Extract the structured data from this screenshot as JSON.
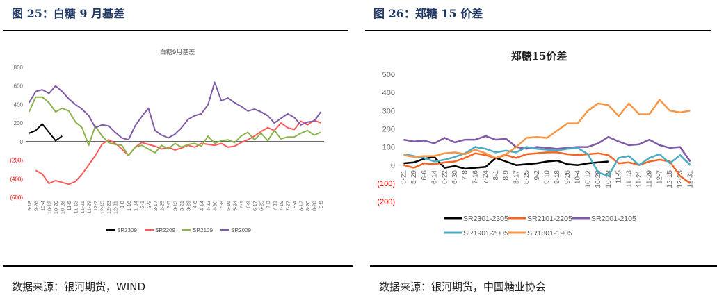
{
  "left": {
    "figure_title": "图 25：白糖 9 月基差",
    "source": "数据来源：银河期货，WIND"
  },
  "right": {
    "figure_title": "图 26：郑糖 15 价差",
    "source": "数据来源：银河期货，中国糖业协会"
  },
  "colors": {
    "title_blue": "#1f3864",
    "negative_label": "#ff0000"
  },
  "chart_data": [
    {
      "type": "line",
      "title": "白糖9月基差",
      "xlabel": "",
      "ylabel": "",
      "ylim": [
        -600,
        800
      ],
      "yticks": [
        800,
        600,
        400,
        200,
        0,
        -200,
        -400,
        -600
      ],
      "ytick_labels": [
        "800",
        "600",
        "400",
        "200",
        "0",
        "(200)",
        "(400)",
        "(600)"
      ],
      "legend_position": "bottom",
      "categories": [
        "9-18",
        "9-26",
        "10-4",
        "10-12",
        "10-20",
        "10-28",
        "11-5",
        "11-13",
        "11-21",
        "11-29",
        "12-7",
        "12-15",
        "12-23",
        "12-31",
        "1-8",
        "1-16",
        "1-24",
        "2-1",
        "2-9",
        "2-17",
        "2-25",
        "3-5",
        "3-13",
        "3-21",
        "3-29",
        "4-6",
        "4-14",
        "4-22",
        "4-30",
        "5-8",
        "5-16",
        "5-24",
        "6-1",
        "6-9",
        "6-17",
        "6-25",
        "7-3",
        "7-11",
        "7-19",
        "7-27",
        "8-4",
        "8-12",
        "8-20",
        "8-28",
        "9-5"
      ],
      "series": [
        {
          "name": "SR2309",
          "color": "#000000",
          "values": [
            90,
            120,
            190,
            100,
            10,
            60,
            null,
            null,
            null,
            null,
            null,
            null,
            null,
            null,
            null,
            null,
            null,
            null,
            null,
            null,
            null,
            null,
            null,
            null,
            null,
            null,
            null,
            null,
            null,
            null,
            null,
            null,
            null,
            null,
            null,
            null,
            null,
            null,
            null,
            null,
            null,
            null,
            null,
            null,
            null
          ]
        },
        {
          "name": "SR2209",
          "color": "#ff5a5a",
          "values": [
            null,
            -310,
            -350,
            -450,
            -420,
            -440,
            -460,
            -430,
            -350,
            -250,
            -150,
            -30,
            20,
            -20,
            -80,
            -150,
            -60,
            -10,
            -30,
            -50,
            -80,
            -60,
            -90,
            -70,
            -40,
            -60,
            -20,
            -30,
            -40,
            -20,
            -60,
            -50,
            -10,
            20,
            60,
            110,
            150,
            120,
            200,
            150,
            130,
            220,
            180,
            230,
            200
          ]
        },
        {
          "name": "SR2109",
          "color": "#8ab34a",
          "values": [
            320,
            480,
            480,
            420,
            320,
            360,
            330,
            210,
            150,
            -40,
            170,
            60,
            -10,
            -30,
            -40,
            -150,
            -60,
            -40,
            -80,
            -120,
            -40,
            -80,
            -20,
            -60,
            -30,
            -20,
            -50,
            60,
            -20,
            10,
            20,
            -10,
            60,
            100,
            20,
            90,
            10,
            120,
            30,
            50,
            50,
            90,
            120,
            70,
            100
          ]
        },
        {
          "name": "SR2009",
          "color": "#7e5aa8",
          "values": [
            420,
            540,
            560,
            520,
            600,
            540,
            460,
            400,
            350,
            280,
            150,
            180,
            170,
            100,
            40,
            20,
            170,
            270,
            360,
            120,
            70,
            40,
            80,
            150,
            240,
            280,
            300,
            400,
            640,
            440,
            470,
            420,
            380,
            330,
            350,
            320,
            280,
            200,
            250,
            300,
            260,
            180,
            210,
            220,
            320
          ]
        }
      ]
    },
    {
      "type": "line",
      "title": "郑糖15价差",
      "xlabel": "",
      "ylabel": "",
      "ylim": [
        -200,
        500
      ],
      "yticks": [
        500,
        400,
        300,
        200,
        100,
        0,
        -100,
        -200
      ],
      "ytick_labels": [
        "500",
        "400",
        "300",
        "200",
        "100",
        "0",
        "(100)",
        "(200)"
      ],
      "legend_position": "bottom",
      "categories": [
        "5-21",
        "5-29",
        "6-6",
        "6-14",
        "6-22",
        "6-30",
        "7-8",
        "7-16",
        "7-24",
        "8-1",
        "8-9",
        "8-17",
        "8-25",
        "9-2",
        "9-10",
        "9-18",
        "9-26",
        "10-4",
        "10-12",
        "10-20",
        "10-28",
        "11-5",
        "11-13",
        "11-21",
        "11-29",
        "12-7",
        "12-15",
        "12-23",
        "12-31"
      ],
      "series": [
        {
          "name": "SR2301-2305",
          "color": "#000000",
          "values": [
            10,
            15,
            35,
            45,
            -15,
            -5,
            -20,
            -15,
            -10,
            40,
            20,
            0,
            5,
            10,
            20,
            25,
            5,
            0,
            10,
            15,
            20,
            null,
            null,
            null,
            null,
            null,
            null,
            null,
            null
          ]
        },
        {
          "name": "SR2101-2205",
          "color": "#f26522",
          "values": [
            0,
            -15,
            10,
            5,
            15,
            20,
            40,
            65,
            55,
            40,
            55,
            40,
            60,
            65,
            70,
            70,
            60,
            55,
            60,
            65,
            55,
            10,
            15,
            0,
            20,
            30,
            20,
            -60,
            -100
          ]
        },
        {
          "name": "SR2001-2105",
          "color": "#7e5aa8",
          "values": [
            140,
            130,
            135,
            120,
            150,
            125,
            140,
            140,
            160,
            140,
            145,
            100,
            90,
            100,
            95,
            90,
            95,
            100,
            100,
            120,
            155,
            130,
            110,
            115,
            140,
            110,
            95,
            100,
            20
          ]
        },
        {
          "name": "SR1901-2005",
          "color": "#4bacc6",
          "values": [
            60,
            50,
            40,
            20,
            30,
            45,
            65,
            100,
            90,
            70,
            80,
            70,
            100,
            90,
            85,
            80,
            90,
            95,
            60,
            -40,
            -60,
            40,
            50,
            0,
            40,
            60,
            10,
            55,
            0
          ]
        },
        {
          "name": "SR1801-1905",
          "color": "#f79646",
          "values": [
            55,
            45,
            50,
            50,
            65,
            70,
            60,
            85,
            65,
            40,
            60,
            100,
            150,
            155,
            150,
            190,
            230,
            230,
            300,
            340,
            330,
            270,
            340,
            280,
            280,
            360,
            300,
            290,
            300
          ]
        }
      ]
    }
  ]
}
